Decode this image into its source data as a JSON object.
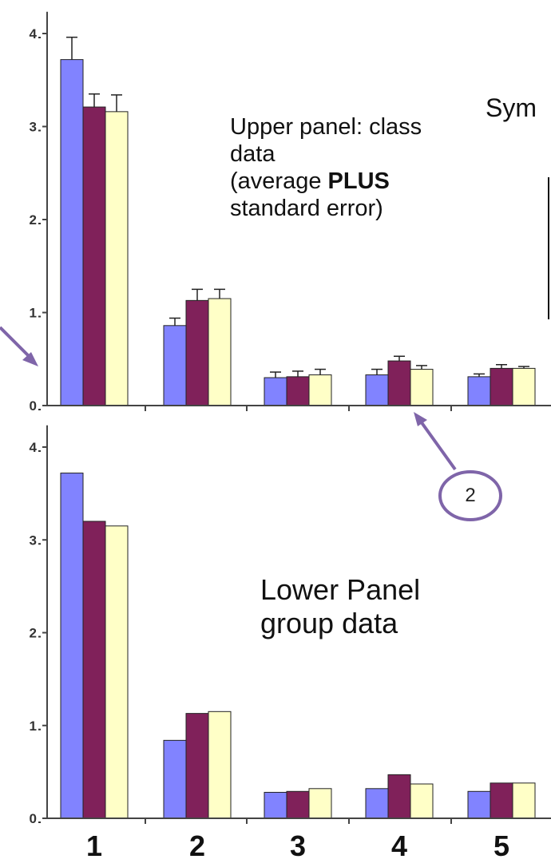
{
  "colors": {
    "series1": "#8183ff",
    "series2": "#80215a",
    "series3": "#ffffc7",
    "axis": "#444444",
    "annotation": "#7f65a9"
  },
  "annotations": {
    "upper_line1": "Upper panel: class",
    "upper_line2": "data",
    "upper_line3_pre": "(average ",
    "upper_line3_bold": "PLUS",
    "upper_line4": "standard error)",
    "lower_line1": "Lower Panel",
    "lower_line2": "group data",
    "sym_fragment": "Sym",
    "callout_number": "2"
  },
  "chart_data": [
    {
      "type": "bar",
      "panel": "upper",
      "categories": [
        "1",
        "2",
        "3",
        "4",
        "5"
      ],
      "series": [
        {
          "values": [
            3.72,
            0.86,
            0.3,
            0.33,
            0.31
          ],
          "errors": [
            0.24,
            0.08,
            0.06,
            0.06,
            0.03
          ]
        },
        {
          "values": [
            3.21,
            1.13,
            0.31,
            0.48,
            0.4
          ],
          "errors": [
            0.14,
            0.12,
            0.06,
            0.05,
            0.04
          ]
        },
        {
          "values": [
            3.16,
            1.15,
            0.33,
            0.39,
            0.4
          ],
          "errors": [
            0.18,
            0.1,
            0.06,
            0.04,
            0.02
          ]
        }
      ],
      "yticks": [
        0,
        1,
        2,
        3,
        4
      ],
      "ylim": [
        0,
        4.2
      ]
    },
    {
      "type": "bar",
      "panel": "lower",
      "categories": [
        "1",
        "2",
        "3",
        "4",
        "5"
      ],
      "series": [
        {
          "values": [
            3.72,
            0.84,
            0.28,
            0.32,
            0.29
          ]
        },
        {
          "values": [
            3.2,
            1.13,
            0.29,
            0.47,
            0.38
          ]
        },
        {
          "values": [
            3.15,
            1.15,
            0.32,
            0.37,
            0.38
          ]
        }
      ],
      "yticks": [
        0,
        1,
        2,
        3,
        4
      ],
      "ylim": [
        0,
        4.2
      ]
    }
  ]
}
